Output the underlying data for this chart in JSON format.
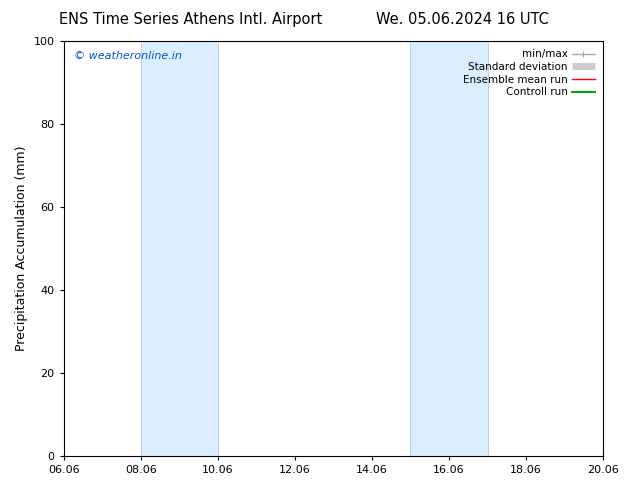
{
  "title_left": "ENS Time Series Athens Intl. Airport",
  "title_right": "We. 05.06.2024 16 UTC",
  "ylabel": "Precipitation Accumulation (mm)",
  "ylim": [
    0,
    100
  ],
  "yticks": [
    0,
    20,
    40,
    60,
    80,
    100
  ],
  "xticks": [
    "06.06",
    "08.06",
    "10.06",
    "12.06",
    "14.06",
    "16.06",
    "18.06",
    "20.06"
  ],
  "xtick_values": [
    0,
    2,
    4,
    6,
    8,
    10,
    12,
    14
  ],
  "shade_regions": [
    {
      "x_start": 2.0,
      "x_end": 4.0
    },
    {
      "x_start": 9.0,
      "x_end": 11.0
    }
  ],
  "shade_color": "#daeeff",
  "shade_edge_color": "#aaccee",
  "background_color": "#ffffff",
  "watermark_text": "© weatheronline.in",
  "watermark_color": "#0055cc",
  "legend_entries": [
    {
      "label": "min/max",
      "color": "#aaaaaa",
      "lw": 1.0
    },
    {
      "label": "Standard deviation",
      "color": "#cccccc",
      "lw": 5
    },
    {
      "label": "Ensemble mean run",
      "color": "#ff0000",
      "lw": 1.0
    },
    {
      "label": "Controll run",
      "color": "#00aa00",
      "lw": 1.5
    }
  ],
  "font_family": "DejaVu Sans",
  "title_fontsize": 10.5,
  "tick_fontsize": 8,
  "ylabel_fontsize": 9,
  "watermark_fontsize": 8,
  "legend_fontsize": 7.5
}
